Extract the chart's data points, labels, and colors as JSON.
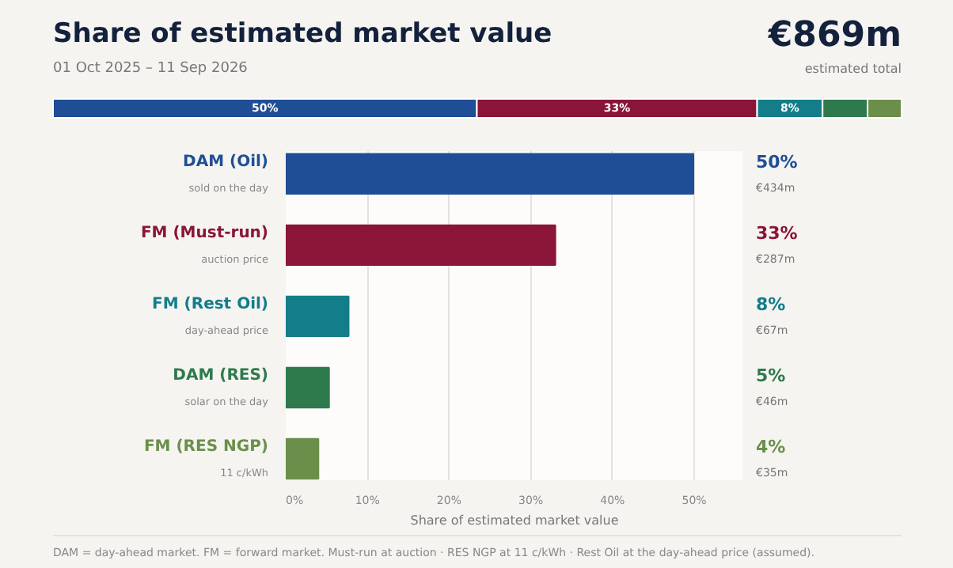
{
  "chart_data": [
    {
      "type": "bar",
      "orientation": "horizontal",
      "stacked": true,
      "title": "Share of estimated market value",
      "subtitle": "01 Oct 2025 – 11 Sep 2026",
      "categories": [
        null
      ],
      "series": [
        {
          "color": "#1f4e96",
          "values": [
            49.9
          ],
          "value_labels": [
            "50%"
          ]
        },
        {
          "color": "#8b1538",
          "values": [
            33.0
          ],
          "value_labels": [
            "33%"
          ]
        },
        {
          "color": "#137d8a",
          "values": [
            7.7
          ],
          "value_labels": [
            "8%"
          ]
        },
        {
          "color": "#2e7a4c",
          "values": [
            5.3
          ]
        },
        {
          "color": "#6b8f4a",
          "values": [
            4.0
          ]
        }
      ],
      "annotations": [
        "€869m",
        "estimated total"
      ]
    },
    {
      "type": "bar",
      "orientation": "horizontal",
      "categories": [
        "DAM (Oil)\nsold on the day",
        "FM (Must-run)\nauction price",
        "FM (Rest Oil)\nday-ahead price",
        "DAM (RES)\nsolar on the day",
        "FM (RES NGP)\n11 c/kWh"
      ],
      "values": [
        49.9,
        33.0,
        7.7,
        5.3,
        4.0
      ],
      "colors": [
        "#1f4e96",
        "#8b1538",
        "#137d8a",
        "#2e7a4c",
        "#6b8f4a"
      ],
      "xlim": [
        0,
        56
      ],
      "xticks": [
        {
          "value": 0,
          "label": "0%"
        },
        {
          "value": 10,
          "label": "10%"
        },
        {
          "value": 20,
          "label": "20%"
        },
        {
          "value": 30,
          "label": "30%"
        },
        {
          "value": 40,
          "label": "40%"
        },
        {
          "value": 50,
          "label": "50%"
        }
      ],
      "xlabel": "Share of estimated market value",
      "grid": "x",
      "annotations": [
        "50%",
        "€434m",
        "33%",
        "€287m",
        "8%",
        "€67m",
        "5%",
        "€46m",
        "4%",
        "€35m",
        "DAM = day-ahead market.  FM = forward market.  Must-run at auction · RES NGP at 11 c/kWh · Rest Oil at the day-ahead price (assumed)."
      ]
    }
  ]
}
